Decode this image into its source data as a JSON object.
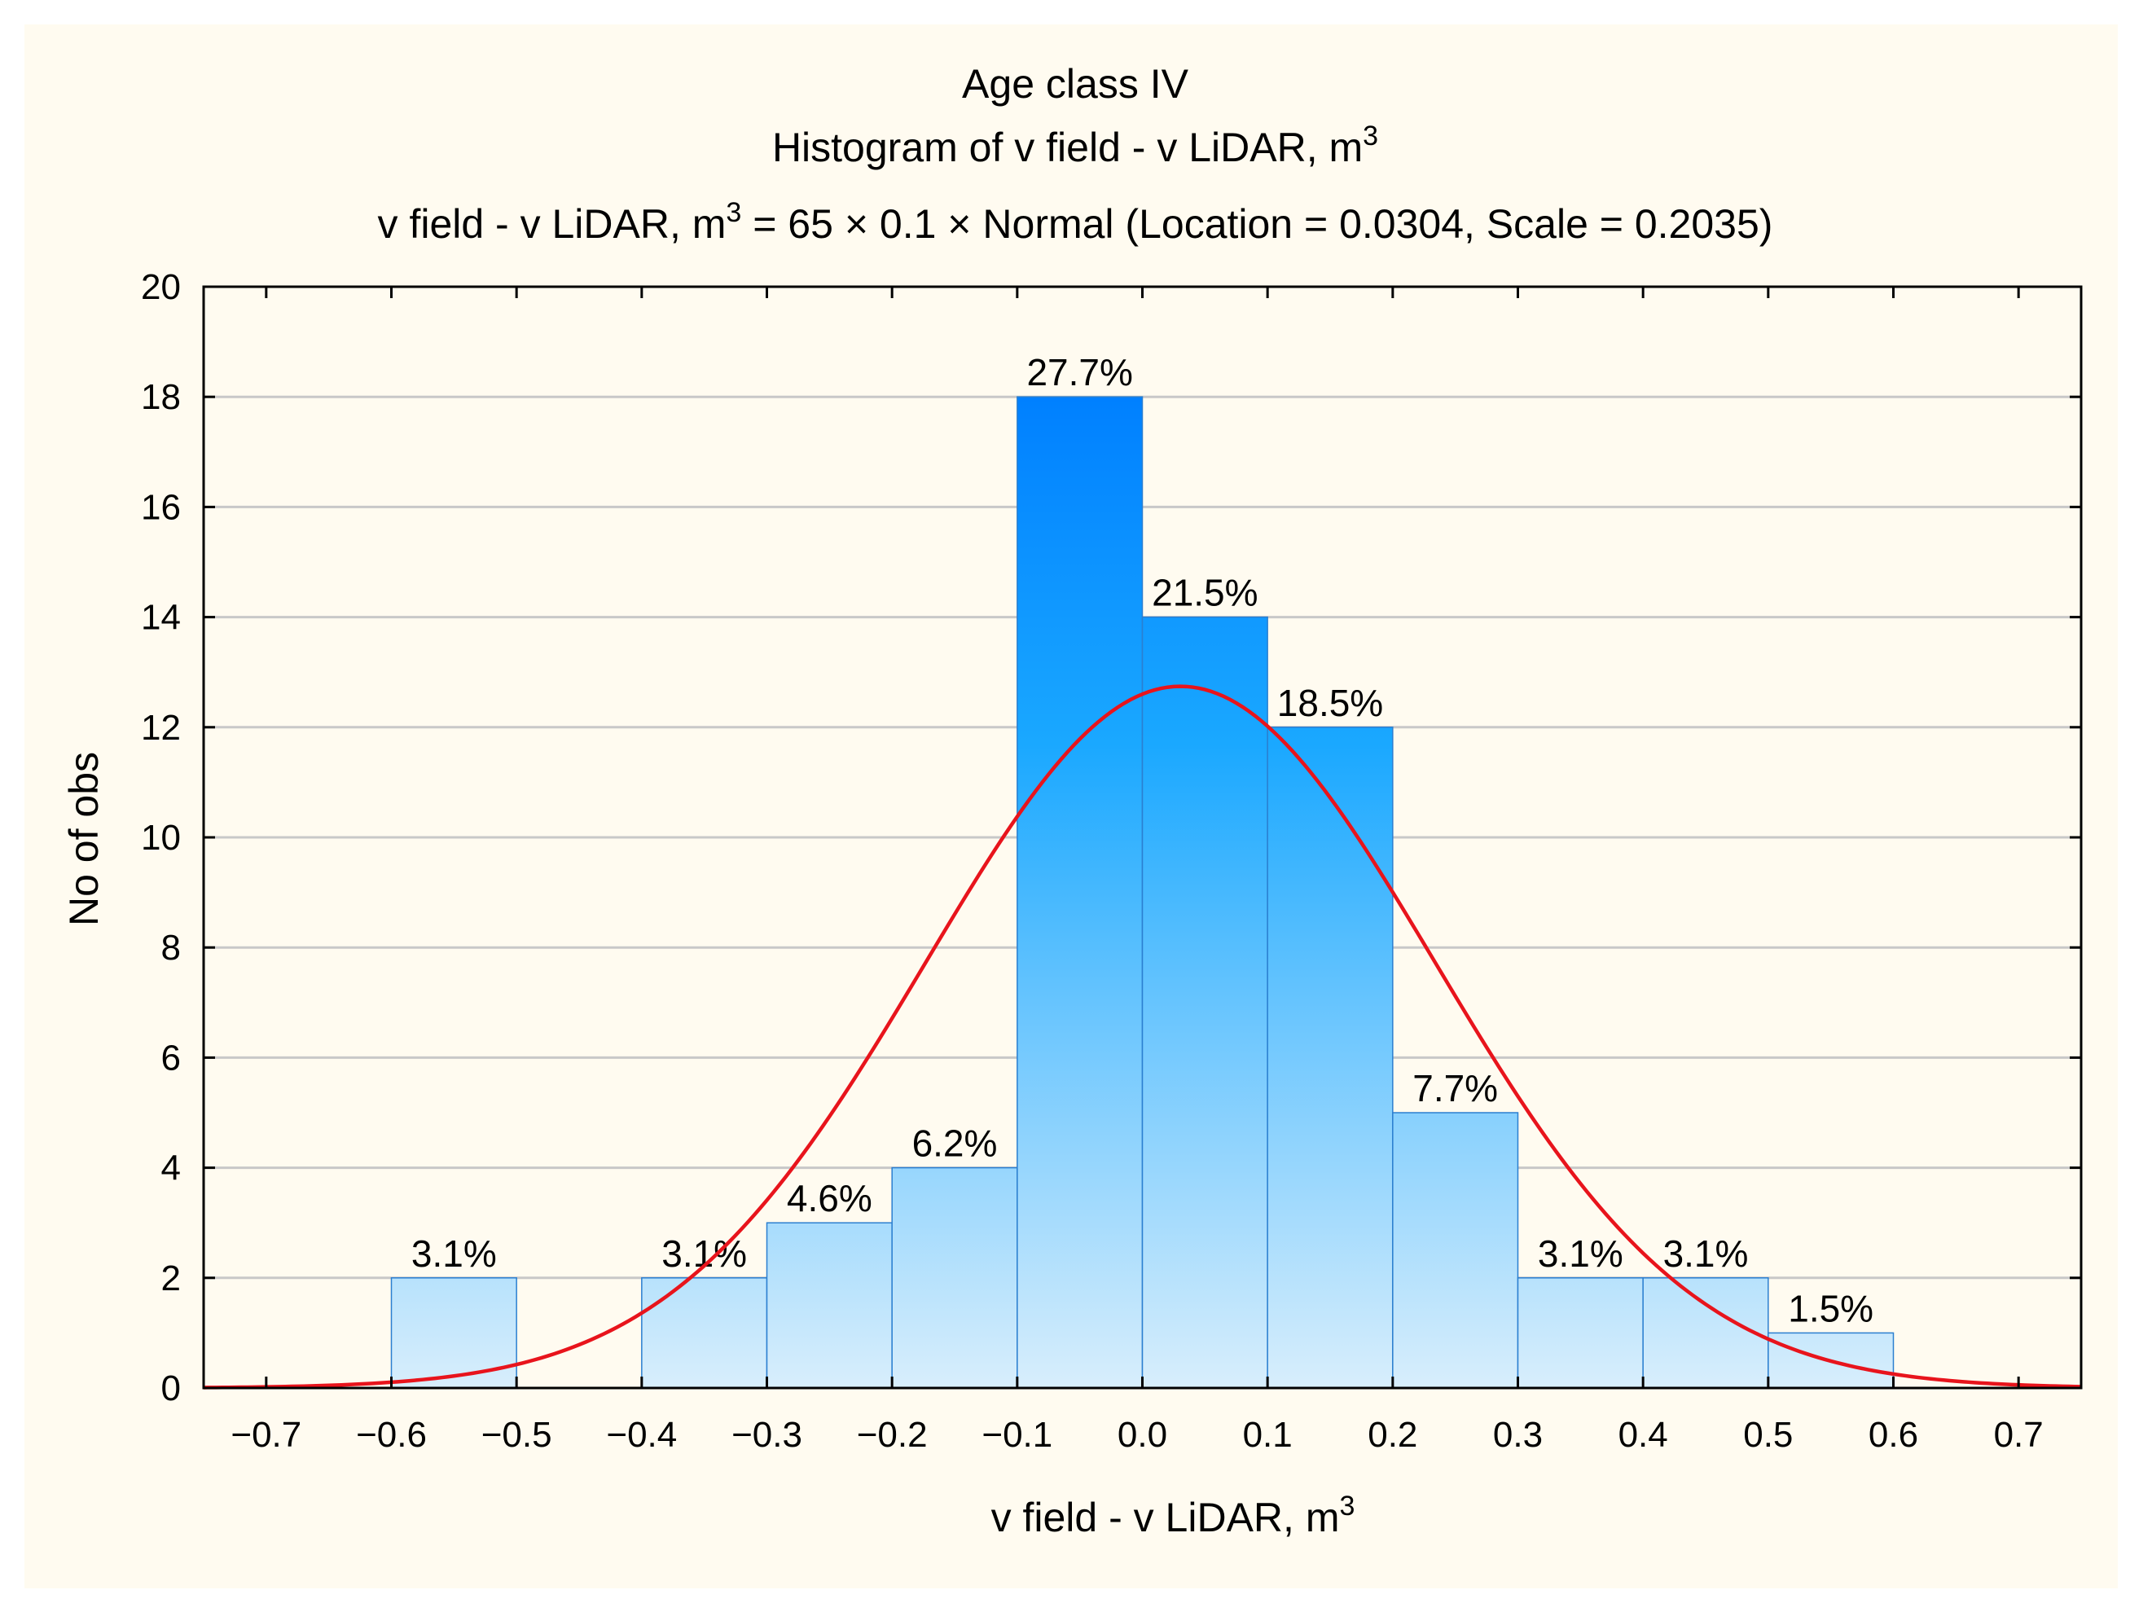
{
  "chart_data": {
    "type": "bar",
    "title": "Age class IV",
    "subtitle": {
      "pre": "Histogram of  v  field  -  v  LiDAR, m",
      "sup": "3"
    },
    "fit_label": {
      "pre": "v  field  -  v  LiDAR, m",
      "sup": "3",
      "post": " = 65 × 0.1 × Normal (Location = 0.0304, Scale = 0.2035)"
    },
    "xlabel": {
      "pre": "v  field  -  v  LiDAR, m",
      "sup": "3"
    },
    "ylabel": "No of obs",
    "xlim": [
      -0.75,
      0.75
    ],
    "ylim": [
      0,
      20
    ],
    "xticks": [
      -0.7,
      -0.6,
      -0.5,
      -0.4,
      -0.3,
      -0.2,
      -0.1,
      0.0,
      0.1,
      0.2,
      0.3,
      0.4,
      0.5,
      0.6,
      0.7
    ],
    "xtick_labels": [
      "−0.7",
      "−0.6",
      "−0.5",
      "−0.4",
      "−0.3",
      "−0.2",
      "−0.1",
      "0.0",
      "0.1",
      "0.2",
      "0.3",
      "0.4",
      "0.5",
      "0.6",
      "0.7"
    ],
    "yticks": [
      0,
      2,
      4,
      6,
      8,
      10,
      12,
      14,
      16,
      18,
      20
    ],
    "ytick_labels": [
      "0",
      "2",
      "4",
      "6",
      "8",
      "10",
      "12",
      "14",
      "16",
      "18",
      "20"
    ],
    "grid": true,
    "bins": [
      {
        "from": -0.6,
        "to": -0.5,
        "count": 2,
        "label": "3.1%"
      },
      {
        "from": -0.4,
        "to": -0.3,
        "count": 2,
        "label": "3.1%"
      },
      {
        "from": -0.3,
        "to": -0.2,
        "count": 3,
        "label": "4.6%"
      },
      {
        "from": -0.2,
        "to": -0.1,
        "count": 4,
        "label": "6.2%"
      },
      {
        "from": -0.1,
        "to": 0.0,
        "count": 18,
        "label": "27.7%"
      },
      {
        "from": 0.0,
        "to": 0.1,
        "count": 14,
        "label": "21.5%"
      },
      {
        "from": 0.1,
        "to": 0.2,
        "count": 12,
        "label": "18.5%"
      },
      {
        "from": 0.2,
        "to": 0.3,
        "count": 5,
        "label": "7.7%"
      },
      {
        "from": 0.3,
        "to": 0.4,
        "count": 2,
        "label": "3.1%"
      },
      {
        "from": 0.4,
        "to": 0.5,
        "count": 2,
        "label": "3.1%"
      },
      {
        "from": 0.5,
        "to": 0.6,
        "count": 1,
        "label": "1.5%"
      }
    ],
    "fit": {
      "distribution": "normal",
      "n": 65,
      "bin_width": 0.1,
      "location": 0.0304,
      "scale": 0.2035,
      "color": "#e8141c"
    },
    "colors": {
      "bar_top": "#0080ff",
      "bar_bottom": "#d8eefc",
      "bar_edge": "#2b7fd0",
      "grid": "#c8c8c8",
      "background": "#fffbf0"
    }
  }
}
